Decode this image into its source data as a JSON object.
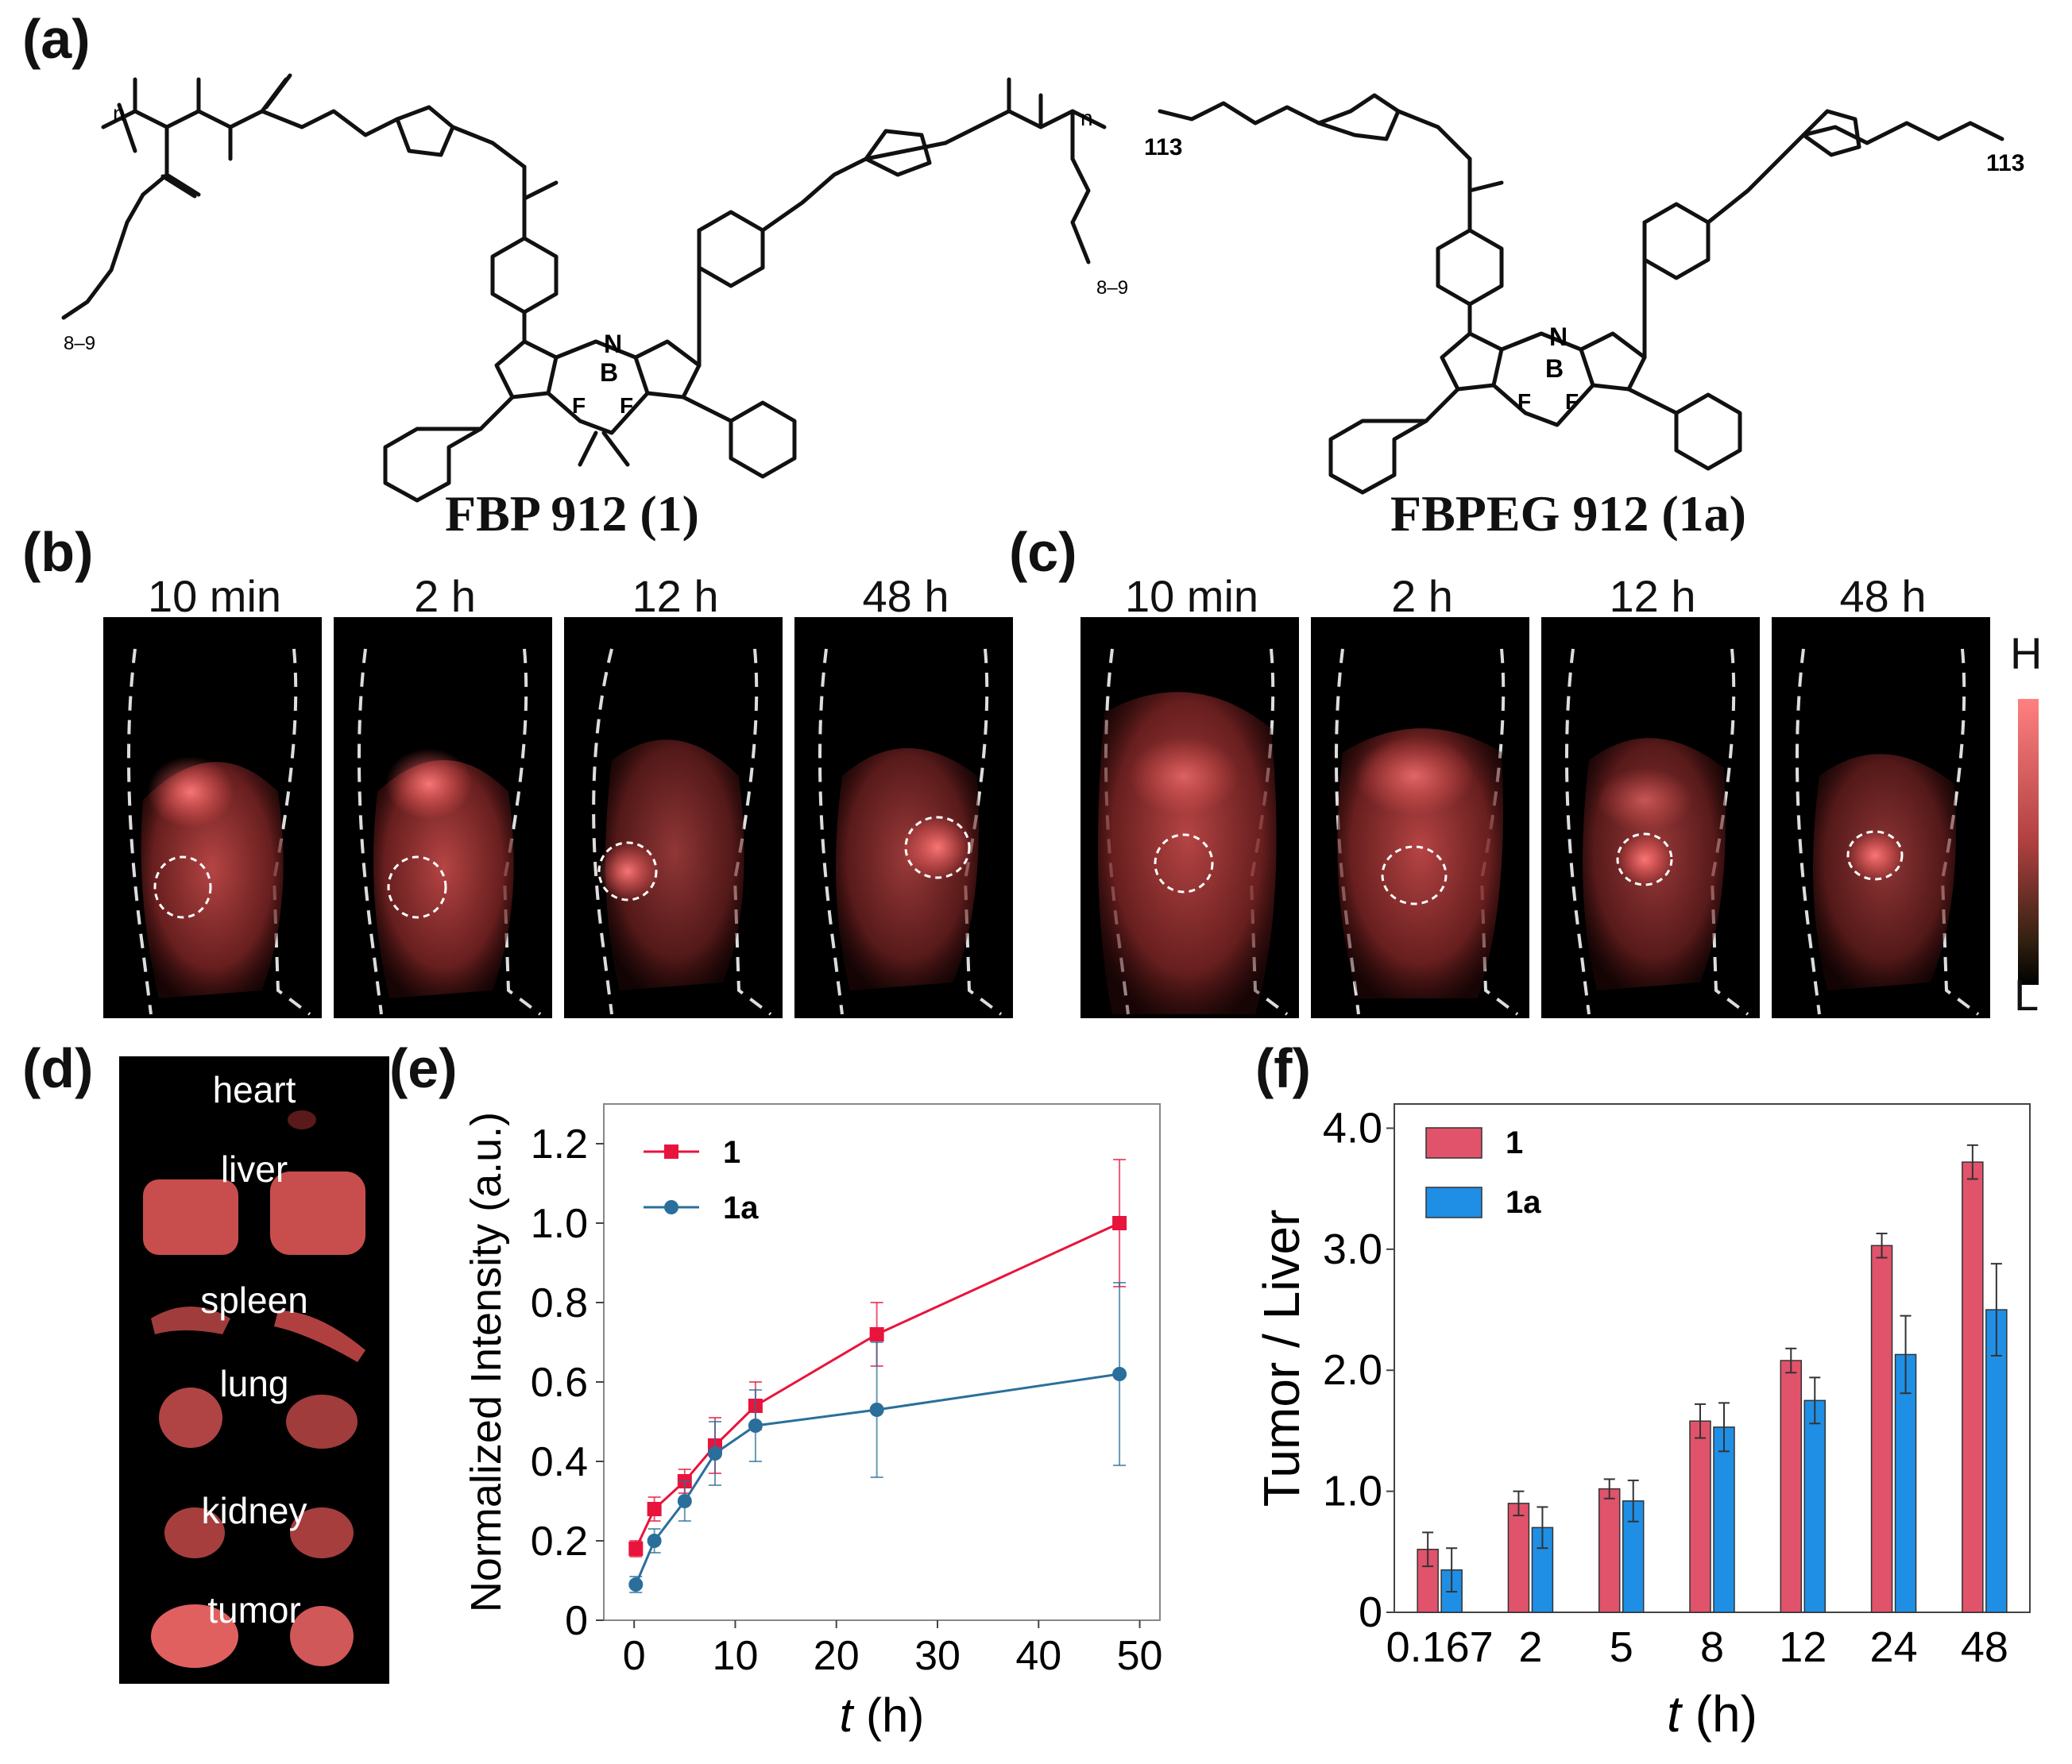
{
  "panels": {
    "a": "(a)",
    "b": "(b)",
    "c": "(c)",
    "d": "(d)",
    "e": "(e)",
    "f": "(f)"
  },
  "compounds": {
    "left_name": "FBP 912 (1)",
    "right_name": "FBPEG 912 (1a)",
    "left_labels": {
      "n_left": "n",
      "n_right": "n",
      "rep_left": "8–9",
      "rep_right": "8–9"
    },
    "right_labels": {
      "peg_left": "113",
      "peg_right": "113"
    }
  },
  "imaging": {
    "time_labels": [
      "10 min",
      "2 h",
      "12 h",
      "48 h"
    ],
    "scale_high": "H",
    "scale_low": "L"
  },
  "organs": [
    "heart",
    "liver",
    "spleen",
    "lung",
    "kidney",
    "tumor"
  ],
  "colors": {
    "series1": "#e8143c",
    "series1a": "#2a6f9b",
    "bar1": "#e0536b",
    "bar1a": "#1f8fe6",
    "fluor": "#ff6a6a"
  },
  "chart_data": [
    {
      "id": "e",
      "type": "line",
      "ylabel": "Normalized Intensity (a.u.)",
      "xlabel_italic": "t",
      "xlabel_unit": " (h)",
      "xlim": [
        -3,
        52
      ],
      "ylim": [
        0,
        1.3
      ],
      "xticks": [
        0,
        10,
        20,
        30,
        40,
        50
      ],
      "yticks": [
        0,
        0.2,
        0.4,
        0.6,
        0.8,
        1.0,
        1.2
      ],
      "ytick_labels": [
        "0",
        "0.2",
        "0.4",
        "0.6",
        "0.8",
        "1.0",
        "1.2"
      ],
      "legend_position": "top-left",
      "series": [
        {
          "name": "1",
          "color": "#e8143c",
          "marker": "square",
          "x": [
            0.167,
            2,
            5,
            8,
            12,
            24,
            48
          ],
          "y": [
            0.18,
            0.28,
            0.35,
            0.44,
            0.54,
            0.72,
            1.0
          ],
          "err": [
            0.02,
            0.03,
            0.03,
            0.07,
            0.06,
            0.08,
            0.16
          ]
        },
        {
          "name": "1a",
          "color": "#2a6f9b",
          "marker": "circle",
          "x": [
            0.167,
            2,
            5,
            8,
            12,
            24,
            48
          ],
          "y": [
            0.09,
            0.2,
            0.3,
            0.42,
            0.49,
            0.53,
            0.62
          ],
          "err": [
            0.02,
            0.03,
            0.05,
            0.08,
            0.09,
            0.17,
            0.23
          ]
        }
      ]
    },
    {
      "id": "f",
      "type": "bar",
      "ylabel": "Tumor / Liver",
      "xlabel_italic": "t",
      "xlabel_unit": " (h)",
      "categories": [
        "0.167",
        "2",
        "5",
        "8",
        "12",
        "24",
        "48"
      ],
      "ylim": [
        0,
        4.2
      ],
      "yticks": [
        0,
        1.0,
        2.0,
        3.0,
        4.0
      ],
      "ytick_labels": [
        "0",
        "1.0",
        "2.0",
        "3.0",
        "4.0"
      ],
      "legend_position": "top-left",
      "series": [
        {
          "name": "1",
          "color": "#e0536b",
          "values": [
            0.52,
            0.9,
            1.02,
            1.58,
            2.08,
            3.03,
            3.72
          ],
          "err": [
            0.14,
            0.1,
            0.08,
            0.14,
            0.1,
            0.1,
            0.14
          ]
        },
        {
          "name": "1a",
          "color": "#1f8fe6",
          "values": [
            0.35,
            0.7,
            0.92,
            1.53,
            1.75,
            2.13,
            2.5
          ],
          "err": [
            0.18,
            0.17,
            0.17,
            0.2,
            0.19,
            0.32,
            0.38
          ]
        }
      ]
    }
  ]
}
